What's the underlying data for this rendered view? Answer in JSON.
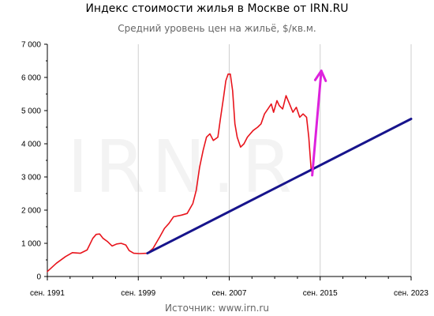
{
  "chart_data": {
    "type": "line",
    "title": "Индекс стоимости жилья в Москве от IRN.RU",
    "subtitle": "Средний уровень цен на жильё, $/кв.м.",
    "source": "Источник: www.irn.ru",
    "watermark": "IRN.R",
    "xlabel": "",
    "ylabel": "",
    "xlim": [
      1991.7,
      2023.7
    ],
    "ylim": [
      0,
      7000
    ],
    "y_ticks": [
      "0",
      "1 000",
      "2 000",
      "3 000",
      "4 000",
      "5 000",
      "6 000",
      "7 000"
    ],
    "y_tick_values": [
      0,
      1000,
      2000,
      3000,
      4000,
      5000,
      6000,
      7000
    ],
    "x_ticks": [
      "сен. 1991",
      "сен. 1999",
      "сен. 2007",
      "сен. 2015",
      "сен. 2023"
    ],
    "x_tick_values": [
      1991.7,
      1999.7,
      2007.7,
      2015.7,
      2023.7
    ],
    "x_minor_ticks": [
      1993.7,
      1995.7,
      1997.7,
      2001.7,
      2003.7,
      2005.7,
      2009.7,
      2011.7,
      2013.7,
      2017.7,
      2019.7,
      2021.7
    ],
    "grid": {
      "x": true,
      "y": false
    },
    "series": [
      {
        "color": "#e8141c",
        "points": [
          [
            1991.7,
            150
          ],
          [
            1992.5,
            400
          ],
          [
            1993.3,
            600
          ],
          [
            1993.9,
            720
          ],
          [
            1994.6,
            700
          ],
          [
            1995.2,
            800
          ],
          [
            1995.7,
            1150
          ],
          [
            1996.0,
            1270
          ],
          [
            1996.3,
            1280
          ],
          [
            1996.6,
            1150
          ],
          [
            1997.0,
            1050
          ],
          [
            1997.4,
            920
          ],
          [
            1997.8,
            980
          ],
          [
            1998.2,
            1000
          ],
          [
            1998.6,
            950
          ],
          [
            1998.9,
            780
          ],
          [
            1999.3,
            700
          ],
          [
            1999.8,
            690
          ],
          [
            2000.5,
            700
          ],
          [
            2001.0,
            850
          ],
          [
            2001.6,
            1200
          ],
          [
            2002.0,
            1450
          ],
          [
            2002.4,
            1600
          ],
          [
            2002.8,
            1800
          ],
          [
            2003.5,
            1850
          ],
          [
            2004.0,
            1900
          ],
          [
            2004.5,
            2200
          ],
          [
            2004.8,
            2600
          ],
          [
            2005.1,
            3300
          ],
          [
            2005.4,
            3800
          ],
          [
            2005.7,
            4200
          ],
          [
            2006.0,
            4300
          ],
          [
            2006.3,
            4100
          ],
          [
            2006.7,
            4200
          ],
          [
            2006.9,
            4700
          ],
          [
            2007.2,
            5400
          ],
          [
            2007.4,
            5900
          ],
          [
            2007.6,
            6100
          ],
          [
            2007.8,
            6100
          ],
          [
            2008.0,
            5600
          ],
          [
            2008.2,
            4600
          ],
          [
            2008.4,
            4200
          ],
          [
            2008.7,
            3900
          ],
          [
            2009.0,
            4000
          ],
          [
            2009.3,
            4200
          ],
          [
            2009.8,
            4400
          ],
          [
            2010.2,
            4500
          ],
          [
            2010.5,
            4600
          ],
          [
            2010.8,
            4900
          ],
          [
            2011.1,
            5050
          ],
          [
            2011.4,
            5200
          ],
          [
            2011.6,
            4950
          ],
          [
            2011.9,
            5300
          ],
          [
            2012.1,
            5150
          ],
          [
            2012.4,
            5050
          ],
          [
            2012.7,
            5450
          ],
          [
            2013.0,
            5200
          ],
          [
            2013.3,
            4950
          ],
          [
            2013.6,
            5100
          ],
          [
            2013.9,
            4800
          ],
          [
            2014.2,
            4900
          ],
          [
            2014.5,
            4800
          ],
          [
            2014.7,
            4200
          ],
          [
            2014.9,
            3250
          ],
          [
            2015.0,
            3100
          ]
        ]
      },
      {
        "color": "#17148c",
        "points": [
          [
            2000.5,
            700
          ],
          [
            2023.7,
            4750
          ]
        ]
      }
    ],
    "arrow": {
      "color": "#dd22dd",
      "from": [
        2015.0,
        3050
      ],
      "to": [
        2015.8,
        6200
      ]
    }
  }
}
